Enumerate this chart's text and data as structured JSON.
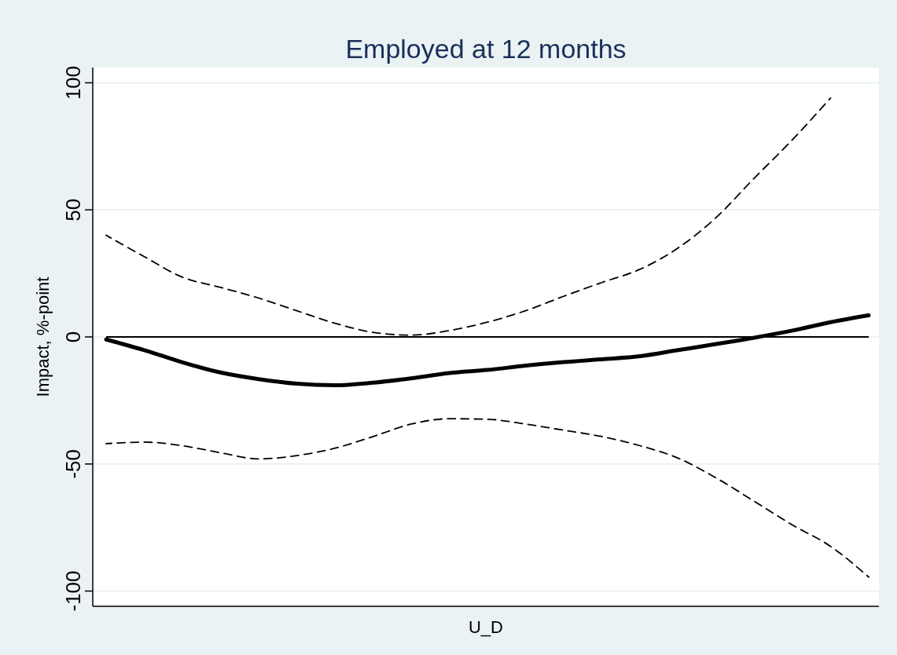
{
  "chart_data": {
    "type": "line",
    "title": "Employed at 12 months",
    "xlabel": "U_D",
    "ylabel": "Impact, %-point",
    "categories": [
      null,
      null,
      null,
      null,
      null,
      null,
      null,
      null,
      null,
      null,
      null,
      null,
      null,
      null,
      null,
      null,
      null,
      null,
      null,
      null,
      null
    ],
    "series": [
      {
        "color": "#000000",
        "line_style": "solid",
        "values": [
          -1,
          -5.2,
          -10,
          -14,
          -16.6,
          -18.4,
          -19,
          -18,
          -16.3,
          -14.2,
          -13,
          -11.3,
          -9.9,
          -8.8,
          -7.6,
          -5.2,
          -2.8,
          -0.3,
          2.5,
          5.8,
          8.5
        ]
      },
      {
        "color": "#000000",
        "line_style": "dashed",
        "values": [
          40,
          31.6,
          23.5,
          19.5,
          15.3,
          10.3,
          5.4,
          1.8,
          0.7,
          2.5,
          5.8,
          10.3,
          16,
          21.4,
          26.6,
          35,
          47,
          62.5,
          77.6,
          94,
          null
        ]
      },
      {
        "color": "#000000",
        "line_style": "dashed",
        "values": [
          -42,
          -41.4,
          -42.8,
          -45.6,
          -48,
          -46.7,
          -43.8,
          -39.2,
          -34.3,
          -32.2,
          -32.4,
          -34.3,
          -36.7,
          -39.2,
          -42.8,
          -47.7,
          -55.5,
          -64.7,
          -74,
          -82.4,
          -94.5
        ]
      }
    ],
    "ylim": [
      -106,
      106
    ],
    "yticks": [
      -100,
      -50,
      0,
      50,
      100
    ],
    "grid": "y",
    "tick_labels": "y",
    "marker": "none",
    "ref_lines": [
      {
        "axis": "y",
        "value": 0,
        "color": "#000000"
      }
    ]
  }
}
